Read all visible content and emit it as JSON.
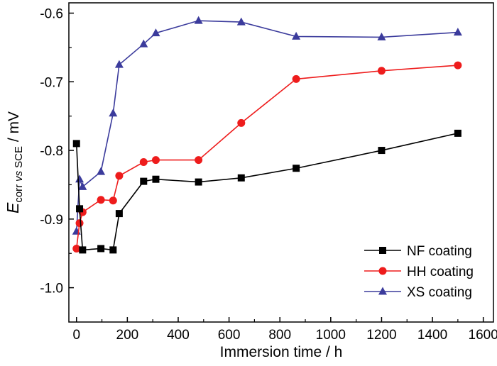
{
  "chart_data": {
    "type": "line",
    "xlabel": "Immersion time / h",
    "ylabel": {
      "symbol": "E",
      "subscript_main": "corr",
      "subscript_vs": "vs",
      "subscript_ref": "SCE",
      "unit": " / mV"
    },
    "xlim": [
      -30,
      1640
    ],
    "ylim": [
      -1.05,
      -0.585
    ],
    "xticks": [
      0,
      200,
      400,
      600,
      800,
      1000,
      1200,
      1400,
      1600
    ],
    "xtick_labels": [
      "0",
      "200",
      "400",
      "600",
      "800",
      "1000",
      "1200",
      "1400",
      "1600"
    ],
    "yticks": [
      -0.6,
      -0.7,
      -0.8,
      -0.9,
      -1.0
    ],
    "ytick_labels": [
      "-0.6",
      "-0.7",
      "-0.8",
      "-0.9",
      "-1.0"
    ],
    "legend_position": "bottom-right",
    "series": [
      {
        "name": "NF coating",
        "color": "#000000",
        "marker": "square",
        "x": [
          0,
          12,
          24,
          96,
          144,
          168,
          264,
          312,
          480,
          648,
          864,
          1200,
          1500
        ],
        "y": [
          -0.79,
          -0.885,
          -0.945,
          -0.943,
          -0.945,
          -0.892,
          -0.845,
          -0.842,
          -0.846,
          -0.84,
          -0.826,
          -0.8,
          -0.775
        ]
      },
      {
        "name": "HH coating",
        "color": "#ee1c1c",
        "marker": "circle",
        "x": [
          0,
          12,
          24,
          96,
          144,
          168,
          264,
          312,
          480,
          648,
          864,
          1200,
          1500
        ],
        "y": [
          -0.943,
          -0.906,
          -0.89,
          -0.872,
          -0.873,
          -0.837,
          -0.817,
          -0.814,
          -0.814,
          -0.76,
          -0.696,
          -0.684,
          -0.676
        ]
      },
      {
        "name": "XS coating",
        "color": "#3b3b9c",
        "marker": "triangle",
        "x": [
          0,
          12,
          24,
          96,
          144,
          168,
          264,
          312,
          480,
          648,
          864,
          1200,
          1500
        ],
        "y": [
          -0.918,
          -0.842,
          -0.853,
          -0.831,
          -0.746,
          -0.675,
          -0.645,
          -0.629,
          -0.611,
          -0.613,
          -0.634,
          -0.635,
          -0.628
        ]
      }
    ]
  }
}
